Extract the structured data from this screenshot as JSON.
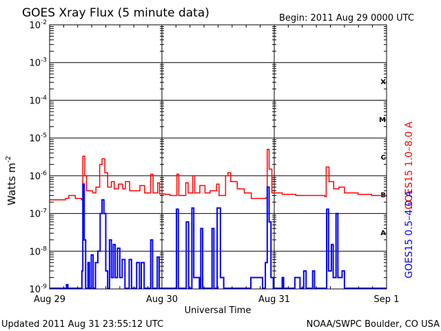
{
  "chart_data": {
    "type": "line",
    "title": "GOES Xray Flux (5 minute data)",
    "begin": "Begin:  2011 Aug 29 0000 UTC",
    "xlabel": "Universal Time",
    "ylabel": "Watts m",
    "ylabel_sup": "-2",
    "x_unit": "hours since 2011 Aug 29 0000 UTC",
    "xlim": [
      0,
      72
    ],
    "ylim": [
      1e-09,
      0.01
    ],
    "yscale": "log",
    "x_ticks": [
      {
        "value": 0,
        "label": "Aug 29"
      },
      {
        "value": 24,
        "label": "Aug 30"
      },
      {
        "value": 48,
        "label": "Aug 31"
      },
      {
        "value": 72,
        "label": "Sep 1"
      }
    ],
    "y_ticks": [
      {
        "exp": -2,
        "base": "10",
        "sup": "-2"
      },
      {
        "exp": -3,
        "base": "10",
        "sup": "-3"
      },
      {
        "exp": -4,
        "base": "10",
        "sup": "-4"
      },
      {
        "exp": -5,
        "base": "10",
        "sup": "-5"
      },
      {
        "exp": -6,
        "base": "10",
        "sup": "-6"
      },
      {
        "exp": -7,
        "base": "10",
        "sup": "-7"
      },
      {
        "exp": -8,
        "base": "10",
        "sup": "-8"
      },
      {
        "exp": -9,
        "base": "10",
        "sup": "-9"
      }
    ],
    "flare_classes": [
      {
        "label": "X",
        "exp": -3.5
      },
      {
        "label": "M",
        "exp": -4.5
      },
      {
        "label": "C",
        "exp": -5.5
      },
      {
        "label": "B",
        "exp": -6.5
      },
      {
        "label": "A",
        "exp": -7.5
      }
    ],
    "grid": true,
    "series": [
      {
        "name": "GOES15 1.0–8.0 A",
        "color": "#ff0000",
        "points": [
          [
            0,
            2.3e-07
          ],
          [
            3.4,
            2.5e-07
          ],
          [
            4.1,
            3e-07
          ],
          [
            5.5,
            2.5e-07
          ],
          [
            6.8,
            2.3e-07
          ],
          [
            7.1,
            3.3e-06
          ],
          [
            7.5,
            1e-06
          ],
          [
            7.9,
            4e-07
          ],
          [
            9.2,
            3.5e-07
          ],
          [
            9.9,
            5e-07
          ],
          [
            10.7,
            2e-06
          ],
          [
            11.2,
            2.8e-06
          ],
          [
            11.8,
            1.2e-06
          ],
          [
            12.4,
            5e-07
          ],
          [
            13.2,
            7e-07
          ],
          [
            13.8,
            4.5e-07
          ],
          [
            14.7,
            6e-07
          ],
          [
            15.6,
            4.5e-07
          ],
          [
            16.2,
            7e-07
          ],
          [
            17.1,
            4e-07
          ],
          [
            18.1,
            4e-07
          ],
          [
            19.3,
            5.5e-07
          ],
          [
            20.3,
            3.5e-07
          ],
          [
            21.5,
            3.5e-07
          ],
          [
            21.6,
            1.1e-06
          ],
          [
            22.1,
            3.5e-07
          ],
          [
            23.1,
            6.5e-07
          ],
          [
            23.5,
            3.3e-07
          ],
          [
            24.7,
            3.2e-07
          ],
          [
            25.7,
            3e-07
          ],
          [
            26.9,
            3e-07
          ],
          [
            27.2,
            1.1e-06
          ],
          [
            27.6,
            3e-07
          ],
          [
            28.8,
            3e-07
          ],
          [
            29.1,
            6.5e-07
          ],
          [
            29.6,
            3.5e-07
          ],
          [
            30.6,
            1e-06
          ],
          [
            31.0,
            3.5e-07
          ],
          [
            32.1,
            5.5e-07
          ],
          [
            33.2,
            3.5e-07
          ],
          [
            34.3,
            4e-07
          ],
          [
            35.7,
            6e-07
          ],
          [
            36.2,
            3e-07
          ],
          [
            37.6,
            1e-06
          ],
          [
            38.1,
            1.2e-06
          ],
          [
            38.7,
            7e-07
          ],
          [
            40.1,
            4.5e-07
          ],
          [
            41.6,
            3.5e-07
          ],
          [
            43.1,
            2.5e-07
          ],
          [
            45.3,
            2.5e-07
          ],
          [
            46.2,
            2.6e-07
          ],
          [
            46.5,
            5e-06
          ],
          [
            46.9,
            1.5e-06
          ],
          [
            47.5,
            3.5e-07
          ],
          [
            49.7,
            3.2e-07
          ],
          [
            52.6,
            3e-07
          ],
          [
            57.1,
            3e-07
          ],
          [
            58.8,
            2.8e-07
          ],
          [
            59.1,
            1.7e-06
          ],
          [
            59.7,
            7e-07
          ],
          [
            60.7,
            4.5e-07
          ],
          [
            61.8,
            5e-07
          ],
          [
            63.0,
            3.5e-07
          ],
          [
            65.9,
            3.2e-07
          ],
          [
            68.8,
            3e-07
          ],
          [
            72,
            2.8e-07
          ]
        ]
      },
      {
        "name": "GOES15 0.5–4.0 A",
        "color": "#0000ff",
        "points": [
          [
            0,
            1e-09
          ],
          [
            3.4,
            1e-09
          ],
          [
            3.6,
            1.3e-09
          ],
          [
            3.9,
            1e-09
          ],
          [
            6.6,
            1e-09
          ],
          [
            6.9,
            3e-09
          ],
          [
            7.1,
            6e-07
          ],
          [
            7.4,
            2e-08
          ],
          [
            7.7,
            1e-09
          ],
          [
            8.2,
            5e-09
          ],
          [
            8.5,
            1e-09
          ],
          [
            8.9,
            8e-09
          ],
          [
            9.3,
            1e-09
          ],
          [
            9.8,
            5e-09
          ],
          [
            10.3,
            1e-08
          ],
          [
            10.8,
            1e-07
          ],
          [
            11.2,
            2.3e-07
          ],
          [
            11.6,
            1e-07
          ],
          [
            12.0,
            3e-09
          ],
          [
            12.4,
            1e-09
          ],
          [
            12.8,
            2e-08
          ],
          [
            13.2,
            2e-09
          ],
          [
            13.6,
            1.5e-08
          ],
          [
            14.0,
            2e-09
          ],
          [
            14.5,
            1.2e-08
          ],
          [
            15.0,
            2e-09
          ],
          [
            15.5,
            6e-09
          ],
          [
            16.1,
            1e-09
          ],
          [
            17.0,
            6e-09
          ],
          [
            17.5,
            1e-09
          ],
          [
            18.2,
            1e-09
          ],
          [
            18.6,
            5e-09
          ],
          [
            19.2,
            1e-09
          ],
          [
            19.6,
            5e-09
          ],
          [
            20.2,
            1e-09
          ],
          [
            21.4,
            1e-09
          ],
          [
            21.6,
            2e-08
          ],
          [
            22.0,
            1e-09
          ],
          [
            23.0,
            7e-09
          ],
          [
            23.4,
            1e-09
          ],
          [
            26.9,
            1e-09
          ],
          [
            27.1,
            1.3e-07
          ],
          [
            27.5,
            1e-09
          ],
          [
            29.0,
            1e-09
          ],
          [
            29.2,
            6e-08
          ],
          [
            29.7,
            1e-09
          ],
          [
            30.4,
            1.4e-07
          ],
          [
            30.8,
            2e-09
          ],
          [
            32.0,
            1e-09
          ],
          [
            32.3,
            4e-08
          ],
          [
            32.7,
            1e-09
          ],
          [
            34.3,
            1e-09
          ],
          [
            34.7,
            4e-08
          ],
          [
            35.1,
            1e-09
          ],
          [
            35.8,
            1.4e-07
          ],
          [
            36.5,
            2e-09
          ],
          [
            37.2,
            1e-09
          ],
          [
            42.5,
            1e-09
          ],
          [
            43.0,
            2e-09
          ],
          [
            45.5,
            1e-09
          ],
          [
            46.1,
            5e-09
          ],
          [
            46.5,
            5e-07
          ],
          [
            46.9,
            6e-08
          ],
          [
            47.3,
            2e-09
          ],
          [
            47.8,
            1e-09
          ],
          [
            49.5,
            1e-09
          ],
          [
            49.7,
            2e-09
          ],
          [
            50.0,
            1e-09
          ],
          [
            52.0,
            1e-09
          ],
          [
            52.4,
            2e-09
          ],
          [
            53.5,
            1e-09
          ],
          [
            54.3,
            3e-09
          ],
          [
            54.8,
            1e-09
          ],
          [
            56.0,
            1e-09
          ],
          [
            56.2,
            3e-09
          ],
          [
            56.6,
            1e-09
          ],
          [
            59.0,
            1e-09
          ],
          [
            59.2,
            1.3e-07
          ],
          [
            59.6,
            3e-09
          ],
          [
            60.2,
            1.5e-08
          ],
          [
            60.6,
            2e-09
          ],
          [
            61.2,
            1e-07
          ],
          [
            61.6,
            2e-09
          ],
          [
            62.5,
            3e-09
          ],
          [
            63.0,
            1e-09
          ],
          [
            72,
            1e-09
          ]
        ]
      }
    ]
  },
  "footer": {
    "updated": "Updated 2011 Aug 31 23:55:12 UTC",
    "credit": "NOAA/SWPC Boulder, CO USA"
  }
}
